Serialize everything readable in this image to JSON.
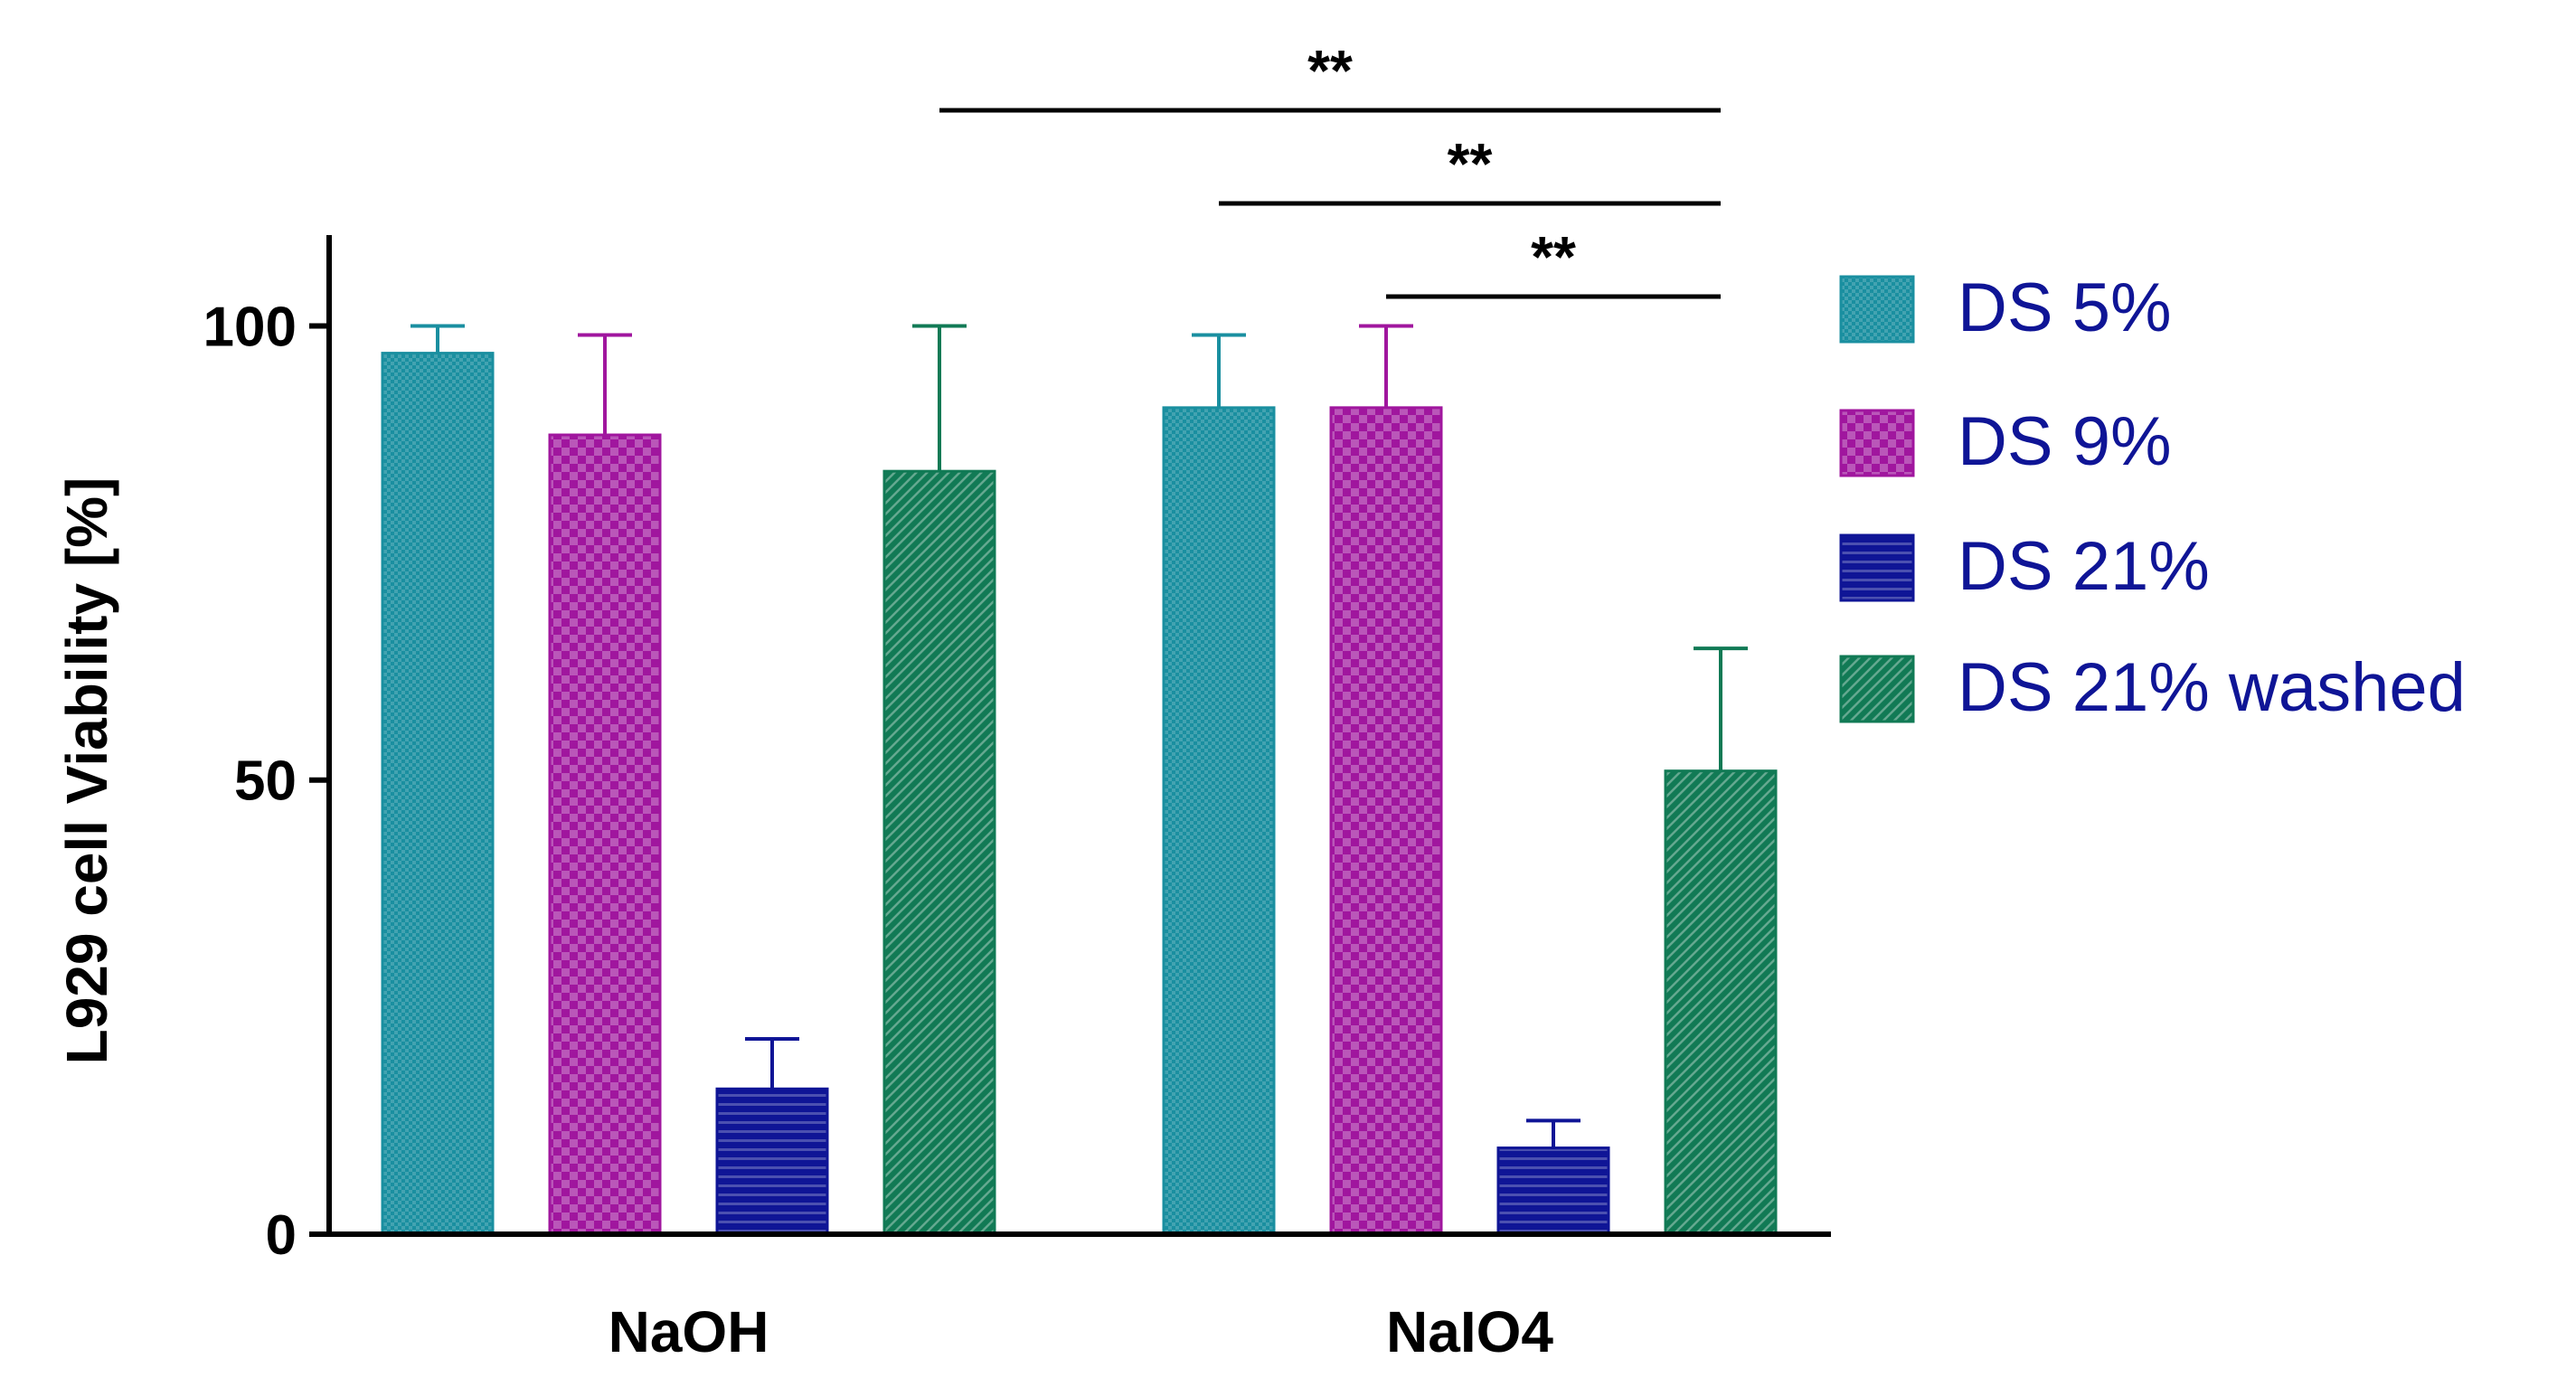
{
  "chart_data": {
    "type": "bar",
    "ylabel": "L929 cell Viability [%]",
    "xlabel": "",
    "categories": [
      "NaOH",
      "NaIO4"
    ],
    "ylim": [
      0,
      110
    ],
    "yticks": [
      0,
      50,
      100
    ],
    "legend_position": "right",
    "series": [
      {
        "name": "DS 5%",
        "values": [
          97,
          91
        ],
        "errors": [
          3,
          8
        ],
        "color": "#1a8fa0",
        "pattern": "fine-check"
      },
      {
        "name": "DS 9%",
        "values": [
          88,
          91
        ],
        "errors": [
          11,
          9
        ],
        "color": "#a0169e",
        "pattern": "checkerboard"
      },
      {
        "name": "DS 21%",
        "values": [
          16,
          9.5
        ],
        "errors": [
          5.5,
          3
        ],
        "color": "#0f1596",
        "pattern": "horizontal-lines"
      },
      {
        "name": "DS 21% washed",
        "values": [
          84,
          51
        ],
        "errors": [
          16,
          13.5
        ],
        "color": "#117a55",
        "pattern": "diagonal-lines"
      }
    ],
    "significance": [
      {
        "label": "**",
        "from": {
          "category": "NaOH",
          "series": "DS 21% washed"
        },
        "to": {
          "category": "NaIO4",
          "series": "DS 21% washed"
        }
      },
      {
        "label": "**",
        "from": {
          "category": "NaIO4",
          "series": "DS 5%"
        },
        "to": {
          "category": "NaIO4",
          "series": "DS 21% washed"
        }
      },
      {
        "label": "**",
        "from": {
          "category": "NaIO4",
          "series": "DS 9%"
        },
        "to": {
          "category": "NaIO4",
          "series": "DS 21% washed"
        }
      }
    ]
  },
  "legend": {
    "text_color": "#0f1596"
  }
}
